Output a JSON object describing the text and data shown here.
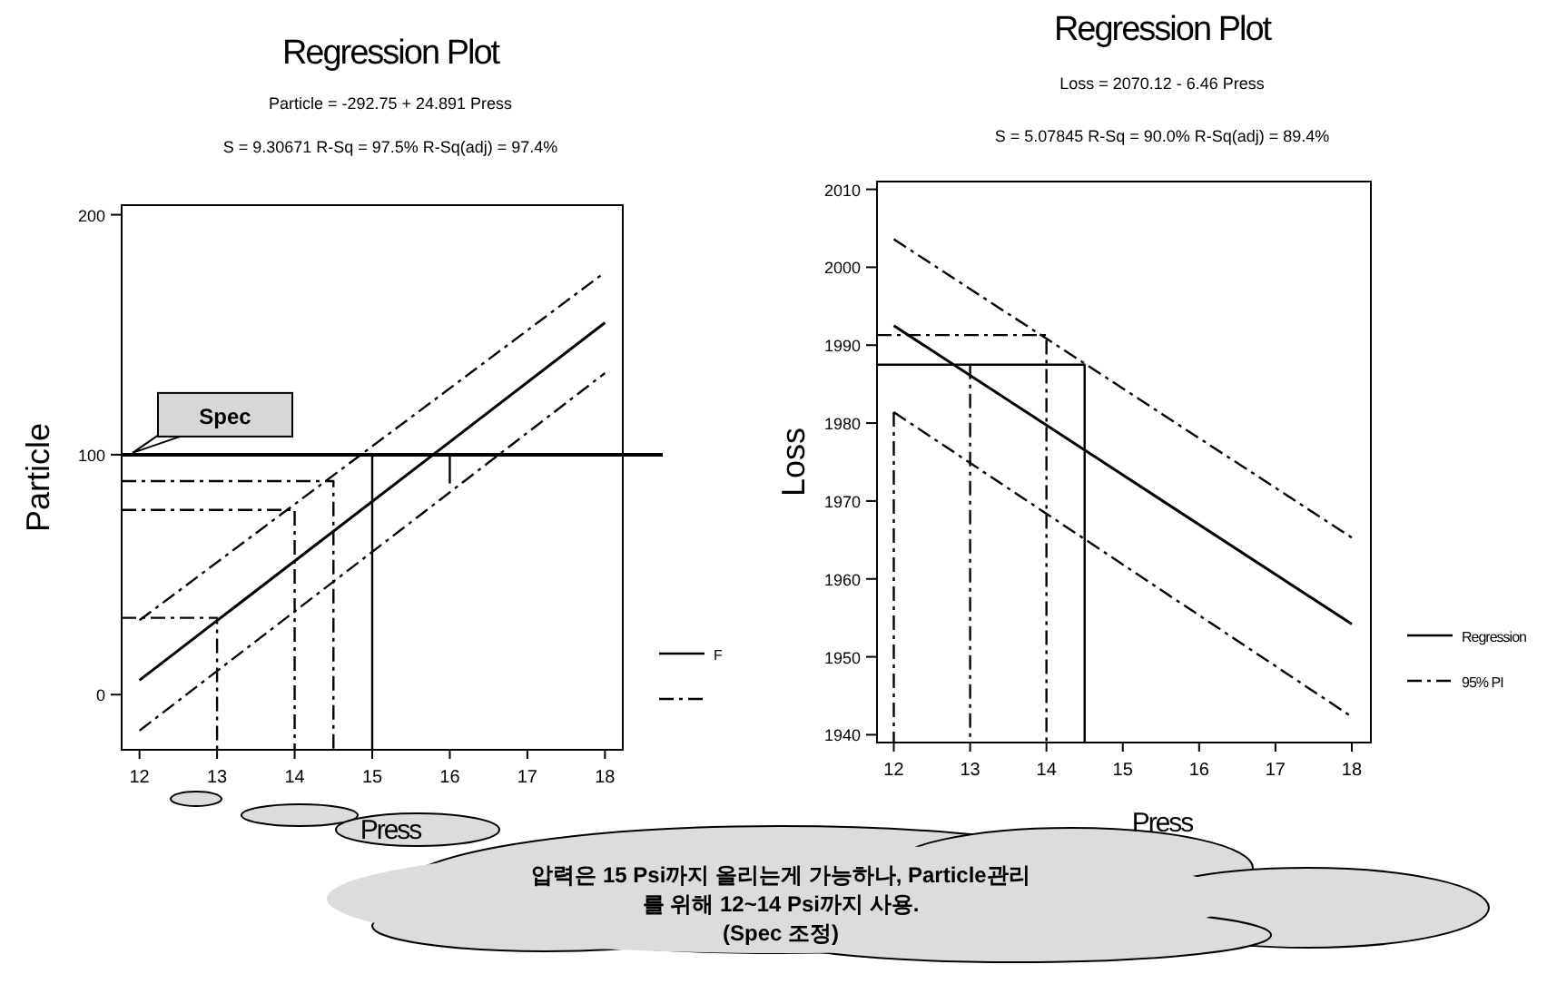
{
  "chart_data": [
    {
      "type": "line",
      "title": "Regression Plot",
      "subtitle": "Particle = -292.75 + 24.891 Press",
      "annotations": [
        "S = 9.30671     R-Sq = 97.5%     R-Sq(adj) = 97.4%",
        "압력은 15 Psi까지 올리는게 가능하나, Particle관리",
        "를 위해 12~14 Psi까지 사용.",
        "(Spec 조정)"
      ],
      "xlabel": "Press",
      "ylabel": "Particle",
      "xlim": [
        11.77,
        18.23
      ],
      "ylim": [
        -23,
        204
      ],
      "xticks": [
        12,
        13,
        14,
        15,
        16,
        17,
        18
      ],
      "yticks": [
        0,
        100,
        200
      ],
      "legend": "right",
      "ref_lines": [
        {
          "axis": "y",
          "value": 100,
          "label": "Spec",
          "color": "#000000"
        }
      ],
      "series": [
        {
          "name": "F",
          "color": "#000000",
          "line_style": "solid",
          "x": [
            12,
            18
          ],
          "values": [
            6,
            155
          ]
        },
        {
          "color": "#000000",
          "line_style": "dashed",
          "x": [
            12,
            18
          ],
          "values": [
            31,
            176
          ]
        },
        {
          "color": "#000000",
          "line_style": "dashed",
          "x": [
            12,
            18
          ],
          "values": [
            -15,
            134
          ]
        },
        {
          "color": "#000000",
          "line_style": "solid",
          "x": [
            15,
            15
          ],
          "values": [
            -23,
            100
          ]
        },
        {
          "color": "#000000",
          "line_style": "dashed",
          "x": [
            11.77,
            14.5,
            14.5
          ],
          "values": [
            89,
            89,
            -23
          ]
        },
        {
          "color": "#000000",
          "line_style": "dashed",
          "x": [
            11.77,
            14,
            14
          ],
          "values": [
            77,
            77,
            -23
          ]
        },
        {
          "color": "#000000",
          "line_style": "dashed",
          "x": [
            11.77,
            13,
            13
          ],
          "values": [
            32,
            32,
            -23
          ]
        },
        {
          "color": "#000000",
          "line_style": "solid",
          "x": [
            16,
            16
          ],
          "values": [
            100,
            88
          ]
        }
      ]
    },
    {
      "type": "line",
      "title": "Regression Plot",
      "subtitle": "Loss = 2070.12 - 6.46 Press",
      "annotations": [
        "S = 5.07845     R-Sq = 90.0%     R-Sq(adj) = 89.4%"
      ],
      "xlabel": "Press",
      "ylabel": "Loss",
      "xlim": [
        11.78,
        18.25
      ],
      "ylim": [
        1939,
        2011
      ],
      "xticks": [
        12,
        13,
        14,
        15,
        16,
        17,
        18
      ],
      "yticks": [
        1940,
        1950,
        1960,
        1970,
        1980,
        1990,
        2000,
        2010
      ],
      "legend": "right",
      "series": [
        {
          "name": "Regression",
          "color": "#000000",
          "line_style": "solid",
          "x": [
            12,
            18
          ],
          "values": [
            1992.5,
            1954.2
          ]
        },
        {
          "name": "95% PI",
          "color": "#000000",
          "line_style": "dashed",
          "x": [
            12,
            18
          ],
          "values": [
            2003.6,
            1965.3
          ]
        },
        {
          "color": "#000000",
          "line_style": "dashed",
          "x": [
            12,
            18
          ],
          "values": [
            1981.4,
            1942.3
          ]
        },
        {
          "color": "#000000",
          "line_style": "solid",
          "x": [
            11.78,
            14.5,
            14.5
          ],
          "values": [
            1987.5,
            1987.5,
            1939
          ]
        },
        {
          "color": "#000000",
          "line_style": "dashed",
          "x": [
            11.78,
            14,
            14
          ],
          "values": [
            1991.3,
            1991.3,
            1939
          ]
        },
        {
          "color": "#000000",
          "line_style": "dashed",
          "x": [
            13,
            13
          ],
          "values": [
            1987.5,
            1939
          ]
        },
        {
          "color": "#000000",
          "line_style": "dashed",
          "x": [
            12,
            12
          ],
          "values": [
            1981.4,
            1939
          ]
        }
      ]
    }
  ]
}
